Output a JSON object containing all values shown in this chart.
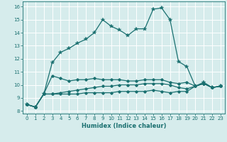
{
  "xlabel": "Humidex (Indice chaleur)",
  "background_color": "#d6ecec",
  "grid_color": "#ffffff",
  "line_color": "#1a7070",
  "xlim": [
    -0.5,
    23.5
  ],
  "ylim": [
    7.8,
    16.4
  ],
  "xticks": [
    0,
    1,
    2,
    3,
    4,
    5,
    6,
    7,
    8,
    9,
    10,
    11,
    12,
    13,
    14,
    15,
    16,
    17,
    18,
    19,
    20,
    21,
    22,
    23
  ],
  "yticks": [
    8,
    9,
    10,
    11,
    12,
    13,
    14,
    15,
    16
  ],
  "line1_x": [
    0,
    1,
    2,
    3,
    4,
    5,
    6,
    7,
    8,
    9,
    10,
    11,
    12,
    13,
    14,
    15,
    16,
    17,
    18,
    19,
    20,
    21,
    22,
    23
  ],
  "line1_y": [
    8.5,
    8.3,
    9.3,
    11.7,
    12.5,
    12.8,
    13.2,
    13.5,
    14.0,
    15.0,
    14.5,
    14.2,
    13.8,
    14.3,
    14.3,
    15.8,
    15.9,
    15.0,
    11.8,
    11.4,
    9.9,
    10.2,
    9.8,
    9.9
  ],
  "line2_x": [
    0,
    1,
    2,
    3,
    4,
    5,
    6,
    7,
    8,
    9,
    10,
    11,
    12,
    13,
    14,
    15,
    16,
    17,
    18,
    19,
    20,
    21,
    22,
    23
  ],
  "line2_y": [
    8.5,
    8.3,
    9.3,
    10.7,
    10.5,
    10.3,
    10.4,
    10.4,
    10.5,
    10.4,
    10.4,
    10.4,
    10.3,
    10.3,
    10.4,
    10.4,
    10.4,
    10.2,
    10.1,
    10.2,
    9.9,
    10.1,
    9.8,
    9.9
  ],
  "line3_x": [
    0,
    1,
    2,
    3,
    4,
    5,
    6,
    7,
    8,
    9,
    10,
    11,
    12,
    13,
    14,
    15,
    16,
    17,
    18,
    19,
    20,
    21,
    22,
    23
  ],
  "line3_y": [
    8.5,
    8.3,
    9.3,
    9.3,
    9.4,
    9.5,
    9.6,
    9.7,
    9.8,
    9.9,
    9.9,
    10.0,
    10.0,
    10.0,
    10.1,
    10.1,
    10.1,
    10.0,
    9.8,
    9.7,
    9.9,
    10.1,
    9.8,
    9.9
  ],
  "line4_x": [
    0,
    1,
    2,
    3,
    4,
    5,
    6,
    7,
    8,
    9,
    10,
    11,
    12,
    13,
    14,
    15,
    16,
    17,
    18,
    19,
    20,
    21,
    22,
    23
  ],
  "line4_y": [
    8.5,
    8.3,
    9.3,
    9.3,
    9.3,
    9.3,
    9.3,
    9.4,
    9.4,
    9.4,
    9.4,
    9.5,
    9.5,
    9.5,
    9.5,
    9.6,
    9.5,
    9.4,
    9.5,
    9.5,
    9.9,
    10.1,
    9.8,
    9.9
  ]
}
